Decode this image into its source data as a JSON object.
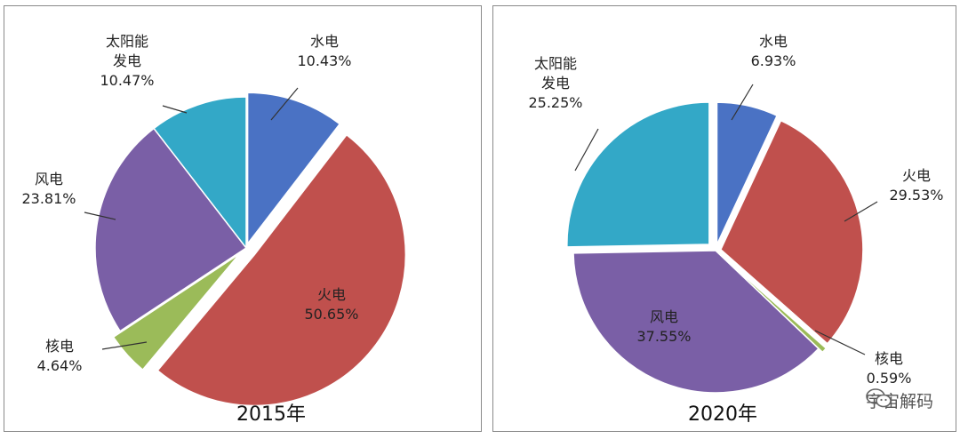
{
  "chart_data": [
    {
      "type": "pie",
      "title": "2015年",
      "colors": {
        "水电": "#4a72c4",
        "火电": "#c0504d",
        "核电": "#9bbb59",
        "风电": "#7a5fa6",
        "太阳能发电": "#33a8c7"
      },
      "slices": [
        {
          "label": "水电",
          "lines": [
            "水电"
          ],
          "value": 10.43,
          "value_label": "10.43%"
        },
        {
          "label": "火电",
          "lines": [
            "火电"
          ],
          "value": 50.65,
          "value_label": "50.65%"
        },
        {
          "label": "核电",
          "lines": [
            "核电"
          ],
          "value": 4.64,
          "value_label": "4.64%"
        },
        {
          "label": "风电",
          "lines": [
            "风电"
          ],
          "value": 23.81,
          "value_label": "23.81%"
        },
        {
          "label": "太阳能发电",
          "lines": [
            "太阳能",
            "发电"
          ],
          "value": 10.47,
          "value_label": "10.47%"
        }
      ]
    },
    {
      "type": "pie",
      "title": "2020年",
      "colors": {
        "水电": "#4a72c4",
        "火电": "#c0504d",
        "核电": "#9bbb59",
        "风电": "#7a5fa6",
        "太阳能发电": "#33a8c7"
      },
      "slices": [
        {
          "label": "水电",
          "lines": [
            "水电"
          ],
          "value": 6.93,
          "value_label": "6.93%"
        },
        {
          "label": "火电",
          "lines": [
            "火电"
          ],
          "value": 29.53,
          "value_label": "29.53%"
        },
        {
          "label": "核电",
          "lines": [
            "核电"
          ],
          "value": 0.59,
          "value_label": "0.59%"
        },
        {
          "label": "风电",
          "lines": [
            "风电"
          ],
          "value": 37.55,
          "value_label": "37.55%"
        },
        {
          "label": "太阳能发电",
          "lines": [
            "太阳能",
            "发电"
          ],
          "value": 25.25,
          "value_label": "25.25%"
        }
      ]
    }
  ],
  "watermark": {
    "text": "宇宙解码",
    "icon": "wechat-icon"
  }
}
